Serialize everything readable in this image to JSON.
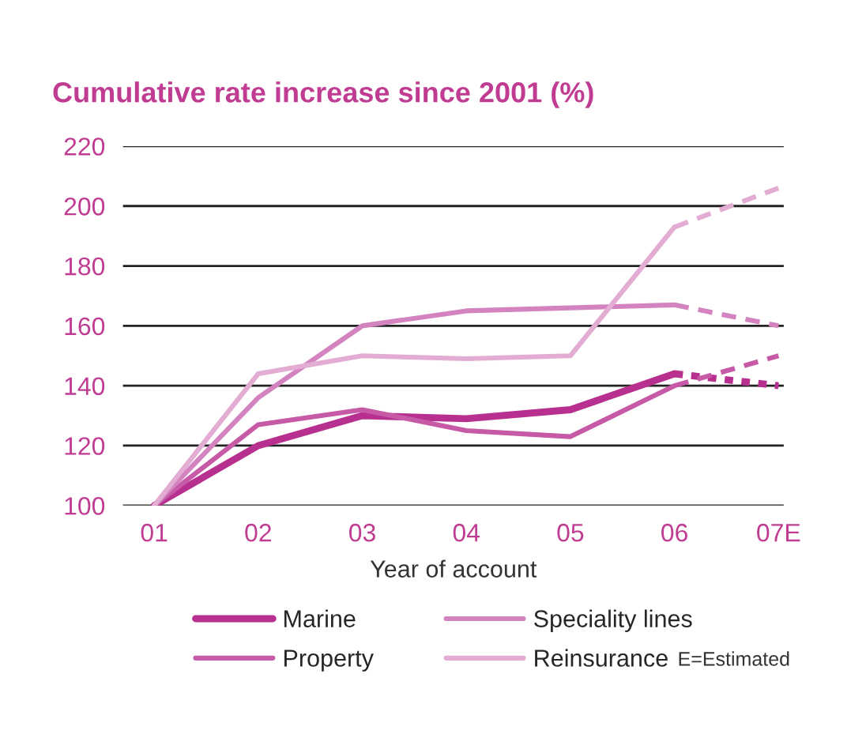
{
  "chart_data": {
    "type": "line",
    "title": "Cumulative rate increase since 2001 (%)",
    "xlabel": "Year of account",
    "categories": [
      "01",
      "02",
      "03",
      "04",
      "05",
      "06",
      "07E"
    ],
    "ylim": [
      100,
      220
    ],
    "yticks": [
      100,
      120,
      140,
      160,
      180,
      200,
      220
    ],
    "grid": "y",
    "legend": "bottom",
    "line_style": "solid",
    "marker": "none",
    "series": [
      {
        "name": "Marine",
        "color": "#b8308f",
        "values": [
          100,
          120,
          130,
          129,
          132,
          144,
          null
        ]
      },
      {
        "name": "Property",
        "color": "#c65aa6",
        "values": [
          100,
          127,
          132,
          125,
          123,
          140,
          null
        ]
      },
      {
        "name": "Speciality lines",
        "color": "#d383bf",
        "values": [
          100,
          136,
          160,
          165,
          166,
          167,
          null
        ]
      },
      {
        "name": "Reinsurance",
        "color": "#e3acd3",
        "values": [
          100,
          144,
          150,
          149,
          150,
          193,
          null
        ]
      },
      {
        "color": "#b8308f",
        "line_style": "dotted",
        "values": [
          null,
          null,
          null,
          null,
          null,
          144,
          140
        ]
      },
      {
        "color": "#c65aa6",
        "line_style": "dashed",
        "values": [
          null,
          null,
          null,
          null,
          null,
          140,
          150
        ]
      },
      {
        "color": "#d383bf",
        "line_style": "dashed",
        "values": [
          null,
          null,
          null,
          null,
          null,
          167,
          160
        ]
      },
      {
        "color": "#e3acd3",
        "line_style": "dashed",
        "values": [
          null,
          null,
          null,
          null,
          null,
          193,
          206
        ]
      }
    ],
    "annotations": [
      "E=Estimated"
    ]
  }
}
